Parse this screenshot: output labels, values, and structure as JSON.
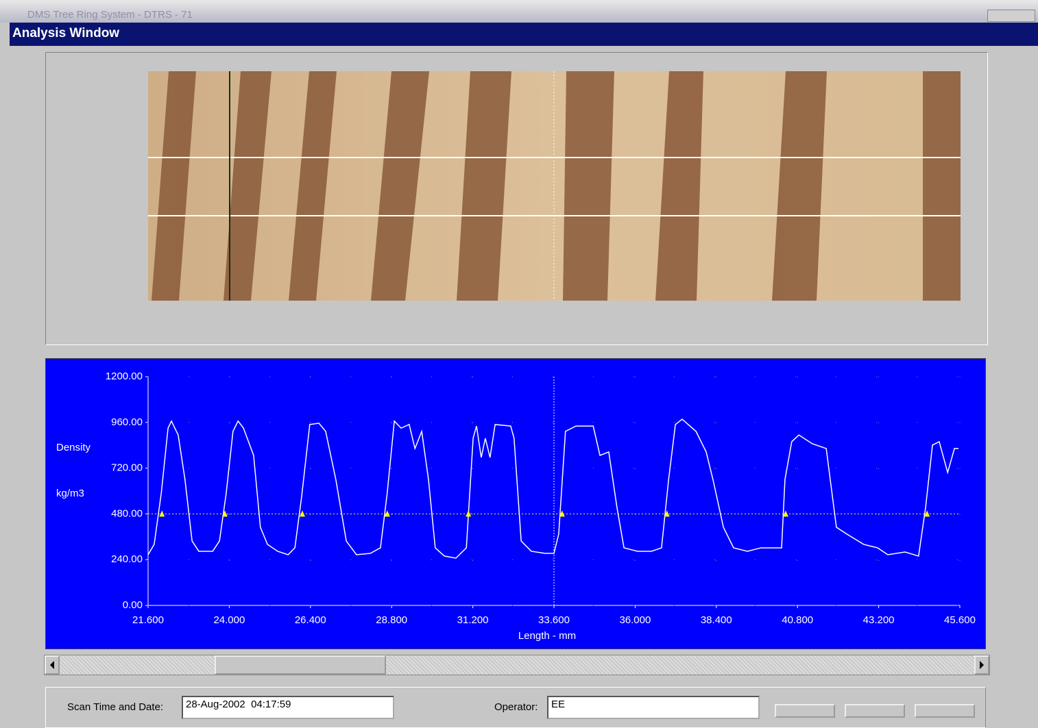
{
  "window": {
    "title": "DMS Tree Ring System - DTRS - 71",
    "subtitle": "Analysis Window"
  },
  "chart_data": {
    "type": "line",
    "ylabel": "Density",
    "yunit": "kg/m3",
    "xlabel": "Length - mm",
    "color": "#ffffff",
    "background": "#0000ff",
    "grid": true,
    "xlim": [
      21.6,
      45.6
    ],
    "ylim": [
      0,
      1200
    ],
    "xticks": [
      {
        "value": 21.6,
        "label": "21.600"
      },
      {
        "value": 24,
        "label": "24.000"
      },
      {
        "value": 26.4,
        "label": "26.400"
      },
      {
        "value": 28.8,
        "label": "28.800"
      },
      {
        "value": 31.2,
        "label": "31.200"
      },
      {
        "value": 33.6,
        "label": "33.600"
      },
      {
        "value": 36,
        "label": "36.000"
      },
      {
        "value": 38.4,
        "label": "38.400"
      },
      {
        "value": 40.8,
        "label": "40.800"
      },
      {
        "value": 43.2,
        "label": "43.200"
      },
      {
        "value": 45.6,
        "label": "45.600"
      }
    ],
    "yticks": [
      {
        "value": 0,
        "label": "0.00"
      },
      {
        "value": 240,
        "label": "240.00"
      },
      {
        "value": 480,
        "label": "480.00"
      },
      {
        "value": 720,
        "label": "720.00"
      },
      {
        "value": 960,
        "label": "960.00"
      },
      {
        "value": 1200,
        "label": "1200.00"
      }
    ],
    "x": [
      21.6,
      21.78,
      21.99,
      22.19,
      22.29,
      22.49,
      22.69,
      22.9,
      23.1,
      23.51,
      23.71,
      23.91,
      24.11,
      24.26,
      24.42,
      24.72,
      24.92,
      25.13,
      25.43,
      25.74,
      25.94,
      26.14,
      26.38,
      26.65,
      26.85,
      27.15,
      27.46,
      27.76,
      28.17,
      28.47,
      28.67,
      28.88,
      29.08,
      29.32,
      29.49,
      29.69,
      29.89,
      30.09,
      30.36,
      30.7,
      31.01,
      31.21,
      31.31,
      31.45,
      31.57,
      31.71,
      31.86,
      32.32,
      32.42,
      32.63,
      32.93,
      33.34,
      33.6,
      33.74,
      33.94,
      34.25,
      34.76,
      34.96,
      35.22,
      35.46,
      35.67,
      36.07,
      36.48,
      36.78,
      36.99,
      37.19,
      37.39,
      37.8,
      38.1,
      38.3,
      38.61,
      38.91,
      39.32,
      39.72,
      40.33,
      40.43,
      40.63,
      40.84,
      41.24,
      41.65,
      41.95,
      42.26,
      42.76,
      43.17,
      43.47,
      43.98,
      44.38,
      44.59,
      44.79,
      44.99,
      45.24,
      45.44,
      45.56
    ],
    "values": [
      266,
      320,
      589,
      930,
      967,
      894,
      661,
      338,
      284,
      284,
      338,
      589,
      913,
      967,
      930,
      787,
      410,
      320,
      284,
      266,
      302,
      571,
      949,
      956,
      913,
      661,
      338,
      266,
      273,
      302,
      589,
      967,
      930,
      949,
      823,
      913,
      661,
      302,
      259,
      248,
      302,
      877,
      941,
      776,
      877,
      776,
      949,
      941,
      877,
      338,
      284,
      273,
      273,
      374,
      913,
      941,
      941,
      787,
      805,
      517,
      302,
      284,
      284,
      302,
      661,
      949,
      977,
      913,
      805,
      661,
      410,
      302,
      284,
      302,
      302,
      661,
      859,
      894,
      848,
      823,
      410,
      374,
      320,
      302,
      266,
      280,
      259,
      517,
      841,
      859,
      697,
      823,
      823
    ],
    "threshold": 480,
    "threshold_color": "#ffff00",
    "markers": [
      22.01,
      23.87,
      26.16,
      28.67,
      31.07,
      33.84,
      36.94,
      40.45,
      44.63
    ],
    "cursor_x": 33.6
  },
  "form": {
    "scan_label": "Scan Time and Date:",
    "scan_value": "28-Aug-2002  04:17:59",
    "operator_label": "Operator:",
    "operator_value": "EE"
  }
}
